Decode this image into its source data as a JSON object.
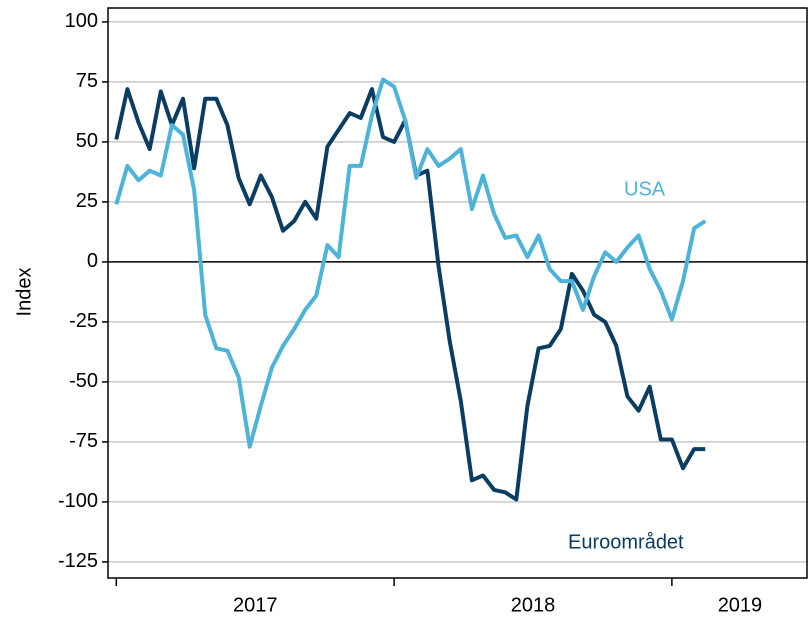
{
  "chart_data": {
    "type": "line",
    "y_label": "Index",
    "x": [
      2017.0,
      2017.04,
      2017.08,
      2017.12,
      2017.16,
      2017.2,
      2017.24,
      2017.28,
      2017.32,
      2017.36,
      2017.4,
      2017.44,
      2017.48,
      2017.52,
      2017.56,
      2017.6,
      2017.64,
      2017.68,
      2017.72,
      2017.76,
      2017.8,
      2017.84,
      2017.88,
      2017.92,
      2017.96,
      2018.0,
      2018.04,
      2018.08,
      2018.12,
      2018.16,
      2018.2,
      2018.24,
      2018.28,
      2018.32,
      2018.36,
      2018.4,
      2018.44,
      2018.48,
      2018.52,
      2018.56,
      2018.6,
      2018.64,
      2018.68,
      2018.72,
      2018.76,
      2018.8,
      2018.84,
      2018.88,
      2018.92,
      2018.96,
      2019.0,
      2019.04,
      2019.08,
      2019.12
    ],
    "series": [
      {
        "name": "Euroområdet",
        "color": "#0b3d63",
        "values": [
          51,
          72,
          58,
          47,
          71,
          57,
          68,
          39,
          68,
          68,
          57,
          35,
          24,
          36,
          27,
          13,
          17,
          25,
          18,
          48,
          55,
          62,
          60,
          72,
          52,
          50,
          59,
          36,
          38,
          -2,
          -33,
          -58,
          -91,
          -89,
          -95,
          -96,
          -99,
          -60,
          -36,
          -35,
          -28,
          -5,
          -12,
          -22,
          -25,
          -35,
          -56,
          -62,
          -52,
          -74,
          -74,
          -86,
          -78,
          -78
        ]
      },
      {
        "name": "USA",
        "color": "#4db3d9",
        "values": [
          24,
          40,
          34,
          38,
          36,
          57,
          53,
          30,
          -22,
          -36,
          -37,
          -48,
          -77,
          -60,
          -44,
          -35,
          -28,
          -20,
          -14,
          7,
          2,
          40,
          40,
          61,
          76,
          73,
          59,
          35,
          47,
          40,
          43,
          47,
          22,
          36,
          20,
          10,
          11,
          2,
          11,
          -3,
          -8,
          -8,
          -20,
          -6,
          4,
          0,
          6,
          11,
          -3,
          -12,
          -24,
          -8,
          14,
          17
        ]
      }
    ],
    "xlim": [
      2016.97,
      2019.49
    ],
    "xticks": [
      2017,
      2018,
      2019
    ],
    "ylim": [
      -131.7,
      105.8
    ],
    "yticks": [
      -125,
      -100,
      -75,
      -50,
      -25,
      0,
      25,
      50,
      75,
      100
    ],
    "grid": true
  }
}
